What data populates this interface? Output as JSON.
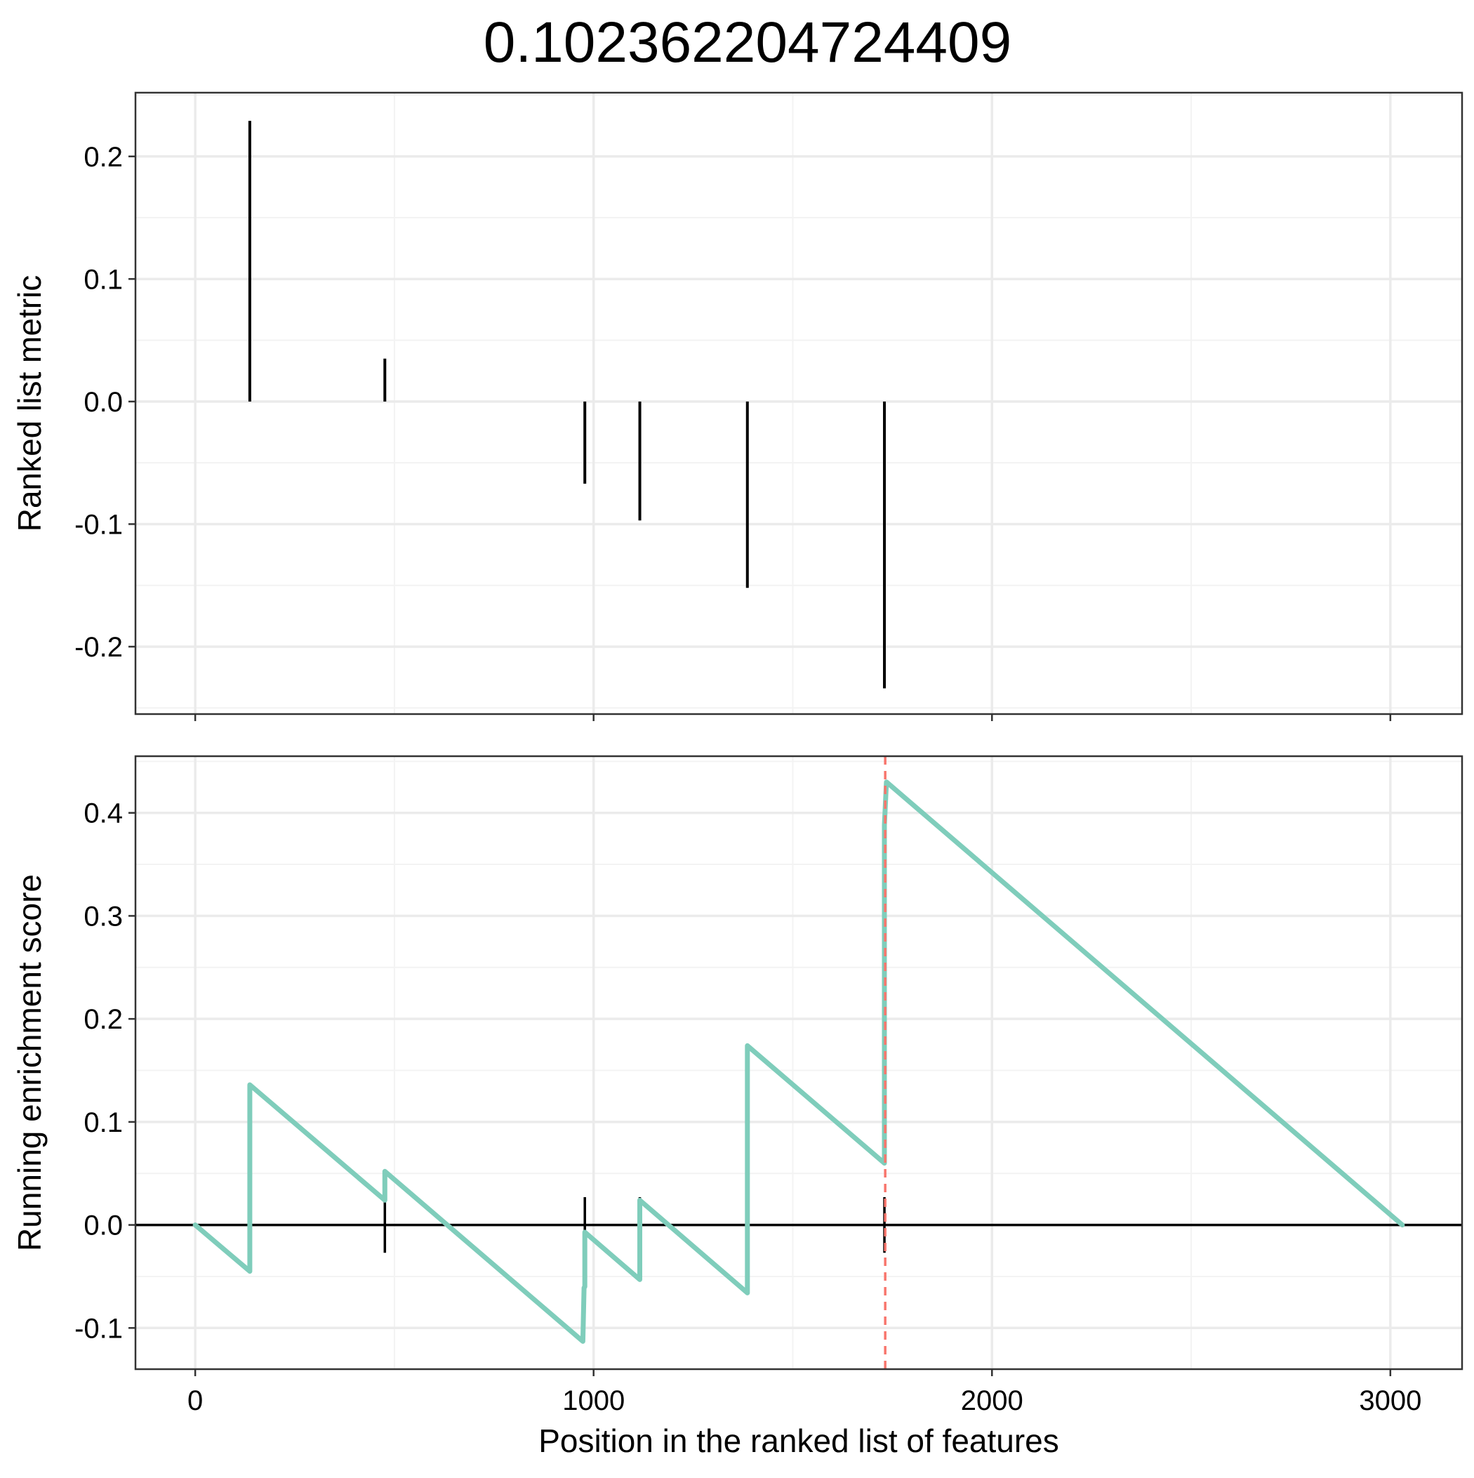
{
  "title": "0.102362204724409",
  "colors": {
    "background": "#ffffff",
    "panel_border": "#333333",
    "grid_major": "#ebebeb",
    "grid_minor": "#f3f3f3",
    "running_es": "#7fcdbb",
    "max_marker": "#f8766d",
    "bars": "#000000"
  },
  "chart_data": [
    {
      "type": "bar",
      "panel": "top",
      "ylabel": "Ranked list metric",
      "xlabel": "",
      "xlim": [
        -150,
        3180
      ],
      "ylim": [
        -0.255,
        0.252
      ],
      "yticks": [
        -0.2,
        -0.1,
        0.0,
        0.1,
        0.2
      ],
      "ytick_labels": [
        "-0.2",
        "-0.1",
        "0.0",
        "0.1",
        "0.2"
      ],
      "xticks": [
        0,
        1000,
        2000,
        3000
      ],
      "grid": true,
      "x": [
        137,
        476,
        978,
        1116,
        1386,
        1730
      ],
      "values": [
        0.229,
        0.035,
        -0.067,
        -0.097,
        -0.152,
        -0.234
      ]
    },
    {
      "type": "line",
      "panel": "bottom",
      "ylabel": "Running enrichment score",
      "xlabel": "Position in the ranked list of features",
      "xlim": [
        -150,
        3180
      ],
      "ylim": [
        -0.14,
        0.455
      ],
      "yticks": [
        -0.1,
        0.0,
        0.1,
        0.2,
        0.3,
        0.4
      ],
      "ytick_labels": [
        "-0.1",
        "0.0",
        "0.1",
        "0.2",
        "0.3",
        "0.4"
      ],
      "xticks": [
        0,
        1000,
        2000,
        3000
      ],
      "xtick_labels": [
        "0",
        "1000",
        "2000",
        "3000"
      ],
      "grid": true,
      "hits": [
        137,
        476,
        978,
        1116,
        1386,
        1730
      ],
      "max_position": 1732,
      "series": [
        {
          "x": [
            0,
            137,
            137,
            476,
            476,
            973,
            976,
            978,
            978,
            1116,
            1116,
            1386,
            1386,
            1730,
            1730,
            1735,
            3030
          ],
          "y": [
            0.0,
            -0.045,
            0.136,
            0.024,
            0.052,
            -0.113,
            -0.061,
            -0.06,
            -0.007,
            -0.053,
            0.024,
            -0.066,
            0.174,
            0.06,
            0.388,
            0.43,
            0.0
          ]
        }
      ]
    }
  ]
}
